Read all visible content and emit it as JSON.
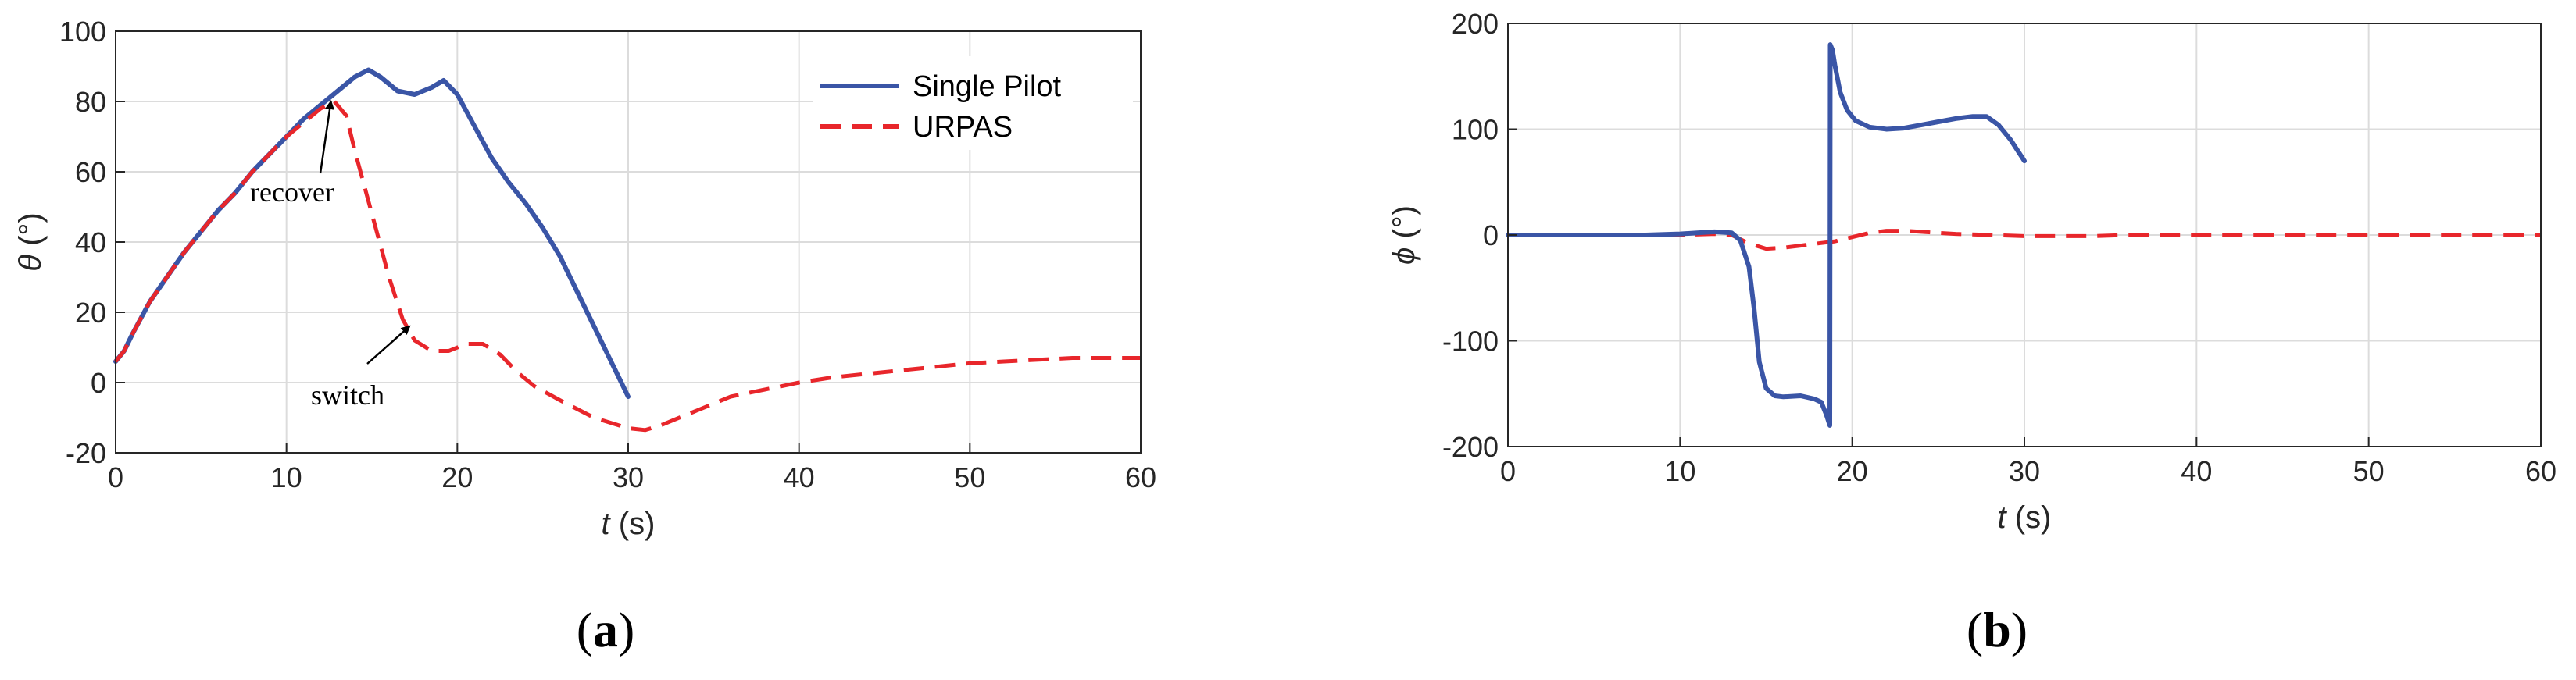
{
  "colors": {
    "single_pilot": "#3a55a6",
    "urpas": "#e8262b",
    "grid": "#dcdcdc",
    "axis": "#262626"
  },
  "chart_data": [
    {
      "id": "a",
      "type": "line",
      "panel_label": "a",
      "xlabel": "t",
      "xunit": " (s)",
      "ylabel": "θ",
      "yunit": " (°)",
      "xlim": [
        0,
        60
      ],
      "ylim": [
        -20,
        100
      ],
      "xticks": [
        0,
        10,
        20,
        30,
        40,
        50,
        60
      ],
      "yticks": [
        -20,
        0,
        20,
        40,
        60,
        80,
        100
      ],
      "grid": true,
      "legend": "top-right",
      "series": [
        {
          "name": "Single Pilot",
          "style": "solid",
          "x": [
            0,
            0.5,
            1,
            2,
            3,
            4,
            5,
            6,
            7,
            8,
            9,
            10,
            11,
            12,
            13,
            14,
            14.8,
            15.5,
            16.5,
            17.5,
            18.5,
            19.2,
            20,
            21,
            22,
            23,
            24,
            25,
            26,
            27,
            28,
            29,
            29.5,
            30
          ],
          "y": [
            6,
            9,
            14,
            23,
            30,
            37,
            43,
            49,
            54,
            60,
            65,
            70,
            75,
            79,
            83,
            87,
            89,
            87,
            83,
            82,
            84,
            86,
            82,
            73,
            64,
            57,
            51,
            44,
            36,
            26,
            16,
            6,
            1,
            -4
          ]
        },
        {
          "name": "URPAS",
          "style": "dashed",
          "x": [
            0,
            0.5,
            1,
            2,
            3,
            4,
            5,
            6,
            7,
            8,
            9,
            10,
            11,
            12,
            12.8,
            13.5,
            14,
            15,
            16,
            16.8,
            17.5,
            18.5,
            19.5,
            20.5,
            21.5,
            22.5,
            23.5,
            24.5,
            26,
            28,
            30,
            31,
            32,
            34,
            36,
            38,
            40,
            42,
            44,
            46,
            48,
            50,
            52,
            54,
            56,
            58,
            60
          ],
          "y": [
            6,
            9,
            14,
            23,
            30,
            37,
            43,
            49,
            54,
            60,
            65,
            70,
            74,
            78,
            80,
            76,
            66,
            48,
            30,
            18,
            12,
            9,
            9,
            11,
            11,
            8,
            3,
            -1,
            -5,
            -10,
            -13,
            -13.5,
            -12,
            -8,
            -4,
            -2,
            0,
            1.5,
            2.5,
            3.5,
            4.5,
            5.5,
            6,
            6.5,
            7,
            7,
            7
          ]
        }
      ],
      "annotations": [
        {
          "text": "recover",
          "arrow_x": 12.6,
          "arrow_y": 80
        },
        {
          "text": "switch",
          "arrow_x": 17.2,
          "arrow_y": 16
        }
      ]
    },
    {
      "id": "b",
      "type": "line",
      "panel_label": "b",
      "xlabel": "t",
      "xunit": " (s)",
      "ylabel": "ϕ",
      "yunit": " (°)",
      "xlim": [
        0,
        60
      ],
      "ylim": [
        -200,
        200
      ],
      "xticks": [
        0,
        10,
        20,
        30,
        40,
        50,
        60
      ],
      "yticks": [
        -200,
        -100,
        0,
        100,
        200
      ],
      "grid": true,
      "series": [
        {
          "name": "Single Pilot",
          "style": "solid",
          "x": [
            0,
            2,
            4,
            6,
            8,
            10,
            11,
            12,
            13,
            13.5,
            14,
            14.3,
            14.6,
            15,
            15.5,
            16,
            17,
            17.8,
            18.2,
            18.5,
            18.7,
            18.72,
            18.85,
            19,
            19.3,
            19.7,
            20.2,
            21,
            22,
            23,
            24,
            25,
            26,
            27,
            27.8,
            28.5,
            29.2,
            30
          ],
          "y": [
            0,
            0,
            0,
            0,
            0,
            1,
            2,
            3,
            2,
            -5,
            -30,
            -70,
            -120,
            -145,
            -152,
            -153,
            -152,
            -155,
            -158,
            -170,
            -180,
            180,
            175,
            160,
            135,
            118,
            108,
            102,
            100,
            101,
            104,
            107,
            110,
            112,
            112,
            104,
            90,
            70
          ]
        },
        {
          "name": "URPAS",
          "style": "dashed",
          "x": [
            0,
            2,
            4,
            6,
            8,
            10,
            12,
            13,
            14,
            15,
            16,
            17,
            18,
            19,
            20,
            21,
            22,
            23,
            24,
            25,
            26,
            28,
            30,
            32,
            34,
            36,
            40,
            45,
            50,
            55,
            60
          ],
          "y": [
            0,
            0,
            0,
            0,
            0,
            0,
            1,
            0,
            -8,
            -13,
            -12,
            -10,
            -8,
            -6,
            -2,
            2,
            4,
            4,
            3,
            2,
            1,
            0,
            -1,
            -1,
            -1,
            0,
            0,
            0,
            0,
            0,
            0
          ]
        }
      ]
    }
  ]
}
